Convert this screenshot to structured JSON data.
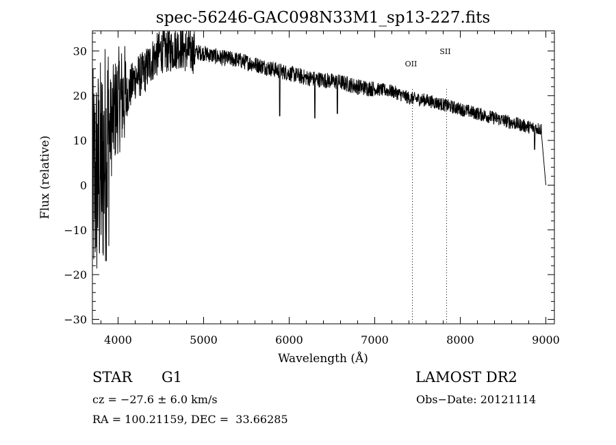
{
  "chart_data": {
    "type": "line",
    "title": "spec-56246-GAC098N33M1_sp13-227.fits",
    "xlabel": "Wavelength (Å)",
    "ylabel": "Flux (relative)",
    "xlim": [
      3700,
      9100
    ],
    "ylim": [
      -31,
      34.5
    ],
    "xticks": [
      4000,
      5000,
      6000,
      7000,
      8000,
      9000
    ],
    "yticks": [
      -30,
      -20,
      -10,
      0,
      10,
      20,
      30
    ],
    "grid": false,
    "continuum": [
      [
        3700,
        0
      ],
      [
        3800,
        3
      ],
      [
        3900,
        12
      ],
      [
        4000,
        19
      ],
      [
        4100,
        20
      ],
      [
        4200,
        24
      ],
      [
        4300,
        25
      ],
      [
        4400,
        28
      ],
      [
        4500,
        30
      ],
      [
        4600,
        30
      ],
      [
        4700,
        31
      ],
      [
        4800,
        30
      ],
      [
        5000,
        29.5
      ],
      [
        5200,
        28.5
      ],
      [
        5400,
        28
      ],
      [
        5600,
        27
      ],
      [
        5800,
        26
      ],
      [
        6000,
        25
      ],
      [
        6200,
        24
      ],
      [
        6400,
        23.5
      ],
      [
        6600,
        23
      ],
      [
        6800,
        22
      ],
      [
        7000,
        21.5
      ],
      [
        7200,
        21
      ],
      [
        7400,
        19.5
      ],
      [
        7600,
        19
      ],
      [
        7800,
        18
      ],
      [
        8000,
        17
      ],
      [
        8200,
        16
      ],
      [
        8400,
        15
      ],
      [
        8600,
        14
      ],
      [
        8800,
        13
      ],
      [
        8950,
        12.5
      ]
    ],
    "absorption_lines": [
      {
        "wavelength": 5890,
        "flux": 15.5
      },
      {
        "wavelength": 6300,
        "flux": 15
      },
      {
        "wavelength": 6563,
        "flux": 16
      },
      {
        "wavelength": 8870,
        "flux": 8
      }
    ],
    "line_markers": [
      {
        "label": "OII",
        "wavelength": 7440
      },
      {
        "label": "SII",
        "wavelength": 7840
      }
    ]
  },
  "object": {
    "class": "STAR",
    "subclass": "G1",
    "survey": "LAMOST DR2",
    "cz": "cz = −27.6 ± 6.0 km/s",
    "obs_date": "Obs−Date: 20121114",
    "radec": "RA = 100.21159, DEC =  33.66285"
  }
}
